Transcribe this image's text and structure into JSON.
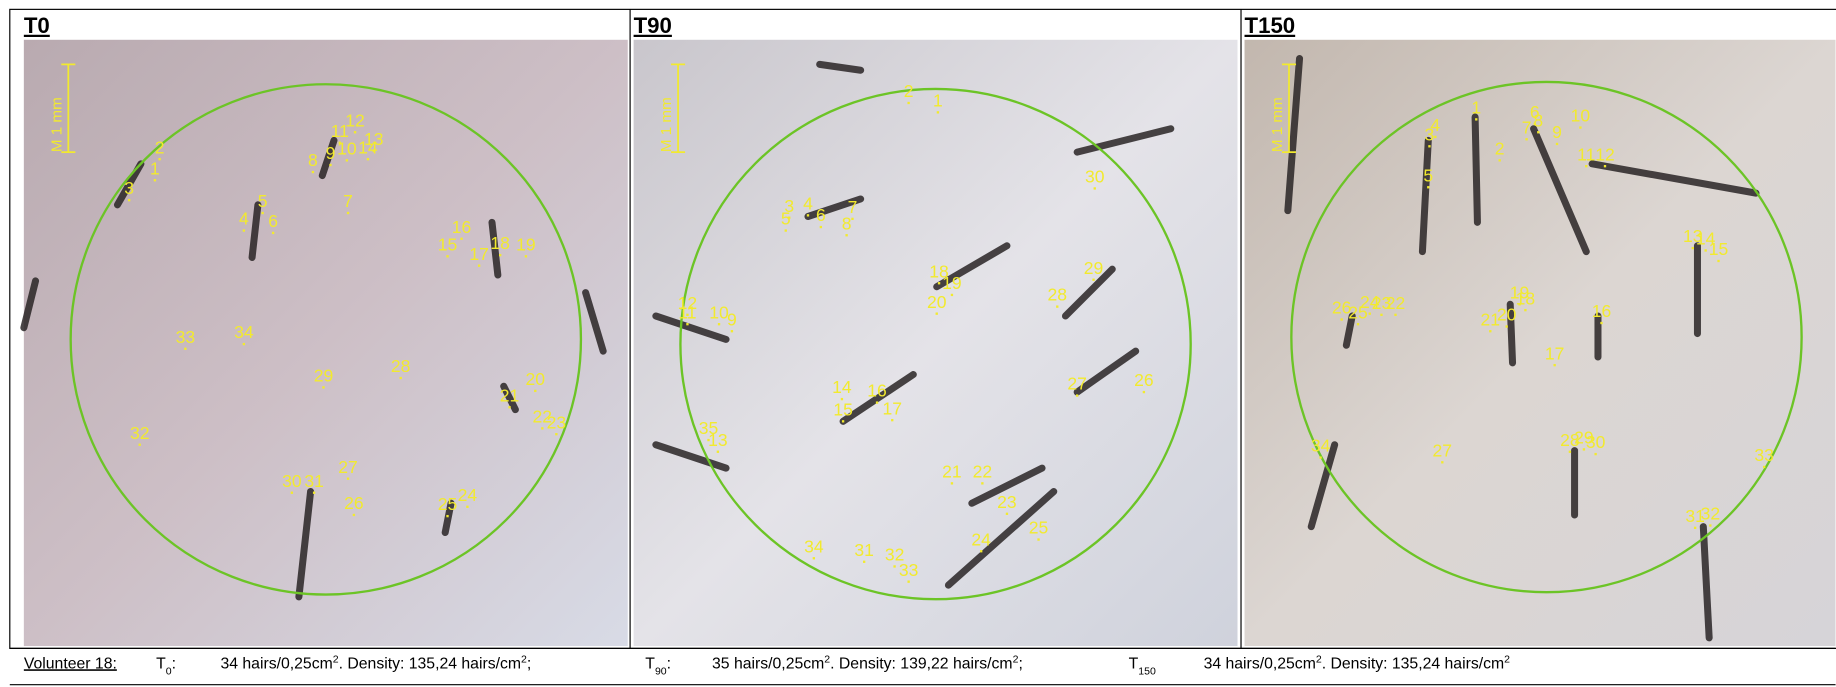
{
  "panels": [
    {
      "title": "T0",
      "scale_label": "M 1 mm",
      "labels": [
        "2",
        "1",
        "3",
        "11",
        "12",
        "8",
        "9",
        "10",
        "14",
        "13",
        "5",
        "4",
        "6",
        "7",
        "16",
        "15",
        "17",
        "18",
        "19",
        "33",
        "34",
        "29",
        "28",
        "21",
        "20",
        "22",
        "23",
        "32",
        "30",
        "31",
        "27",
        "26",
        "25",
        "24"
      ]
    },
    {
      "title": "T90",
      "scale_label": "M 1 mm",
      "labels": [
        "2",
        "1",
        "30",
        "3",
        "4",
        "5",
        "6",
        "7",
        "8",
        "18",
        "19",
        "20",
        "29",
        "28",
        "12",
        "11",
        "10",
        "9",
        "27",
        "26",
        "14",
        "16",
        "15",
        "17",
        "35",
        "13",
        "21",
        "22",
        "23",
        "25",
        "24",
        "34",
        "31",
        "32",
        "33"
      ]
    },
    {
      "title": "T150",
      "scale_label": "M 1 mm",
      "labels": [
        "1",
        "6",
        "10",
        "3",
        "4",
        "7",
        "8",
        "9",
        "2",
        "11",
        "12",
        "5",
        "13",
        "14",
        "15",
        "26",
        "25",
        "24",
        "23",
        "22",
        "19",
        "18",
        "21",
        "20",
        "16",
        "17",
        "34",
        "27",
        "28",
        "29",
        "30",
        "33",
        "31",
        "32"
      ]
    }
  ],
  "footer": {
    "volunteer": "Volunteer 18:",
    "entries": [
      {
        "t": "T",
        "sub": "0",
        "colon": ":",
        "count": "34 hairs/0,25cm",
        "sup1": "2",
        "density": ". Density: 135,24 hairs/cm",
        "sup2": "2",
        "end": ";"
      },
      {
        "t": "T",
        "sub": "90",
        "colon": ":",
        "count": "35 hairs/0,25cm",
        "sup1": "2",
        "density": ". Density: 139,22 hairs/cm",
        "sup2": "2",
        "end": ";"
      },
      {
        "t": "T",
        "sub": "150",
        "count": "34 hairs/0,25cm",
        "sup1": "2",
        "density": ". Density: 135,24 hairs/cm",
        "sup2": "2"
      }
    ]
  }
}
